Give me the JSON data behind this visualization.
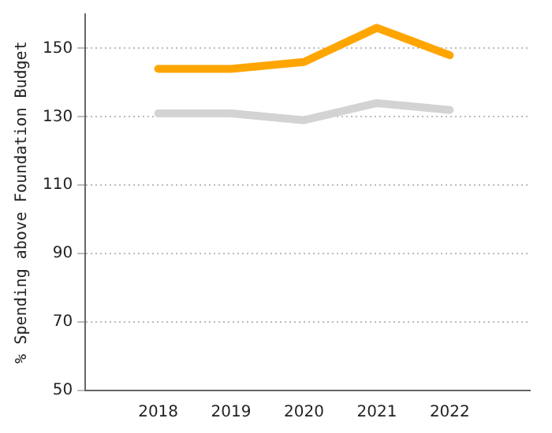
{
  "chart_data": {
    "type": "line",
    "ylabel": "% Spending above Foundation Budget",
    "x": [
      2018,
      2019,
      2020,
      2021,
      2022
    ],
    "series": [
      {
        "color": "#ffa500",
        "values": [
          144,
          144,
          146,
          156,
          148
        ]
      },
      {
        "color": "#d3d3d3",
        "values": [
          131,
          131,
          129,
          134,
          132
        ]
      }
    ],
    "xlim": [
      2017,
      2023.1
    ],
    "xticks": [
      2018,
      2019,
      2020,
      2021,
      2022
    ],
    "ylim": [
      50,
      160
    ],
    "yticks": [
      50,
      70,
      90,
      110,
      130,
      150
    ],
    "grid": "y",
    "legend": false,
    "marker": "none",
    "line_style": "solid"
  }
}
